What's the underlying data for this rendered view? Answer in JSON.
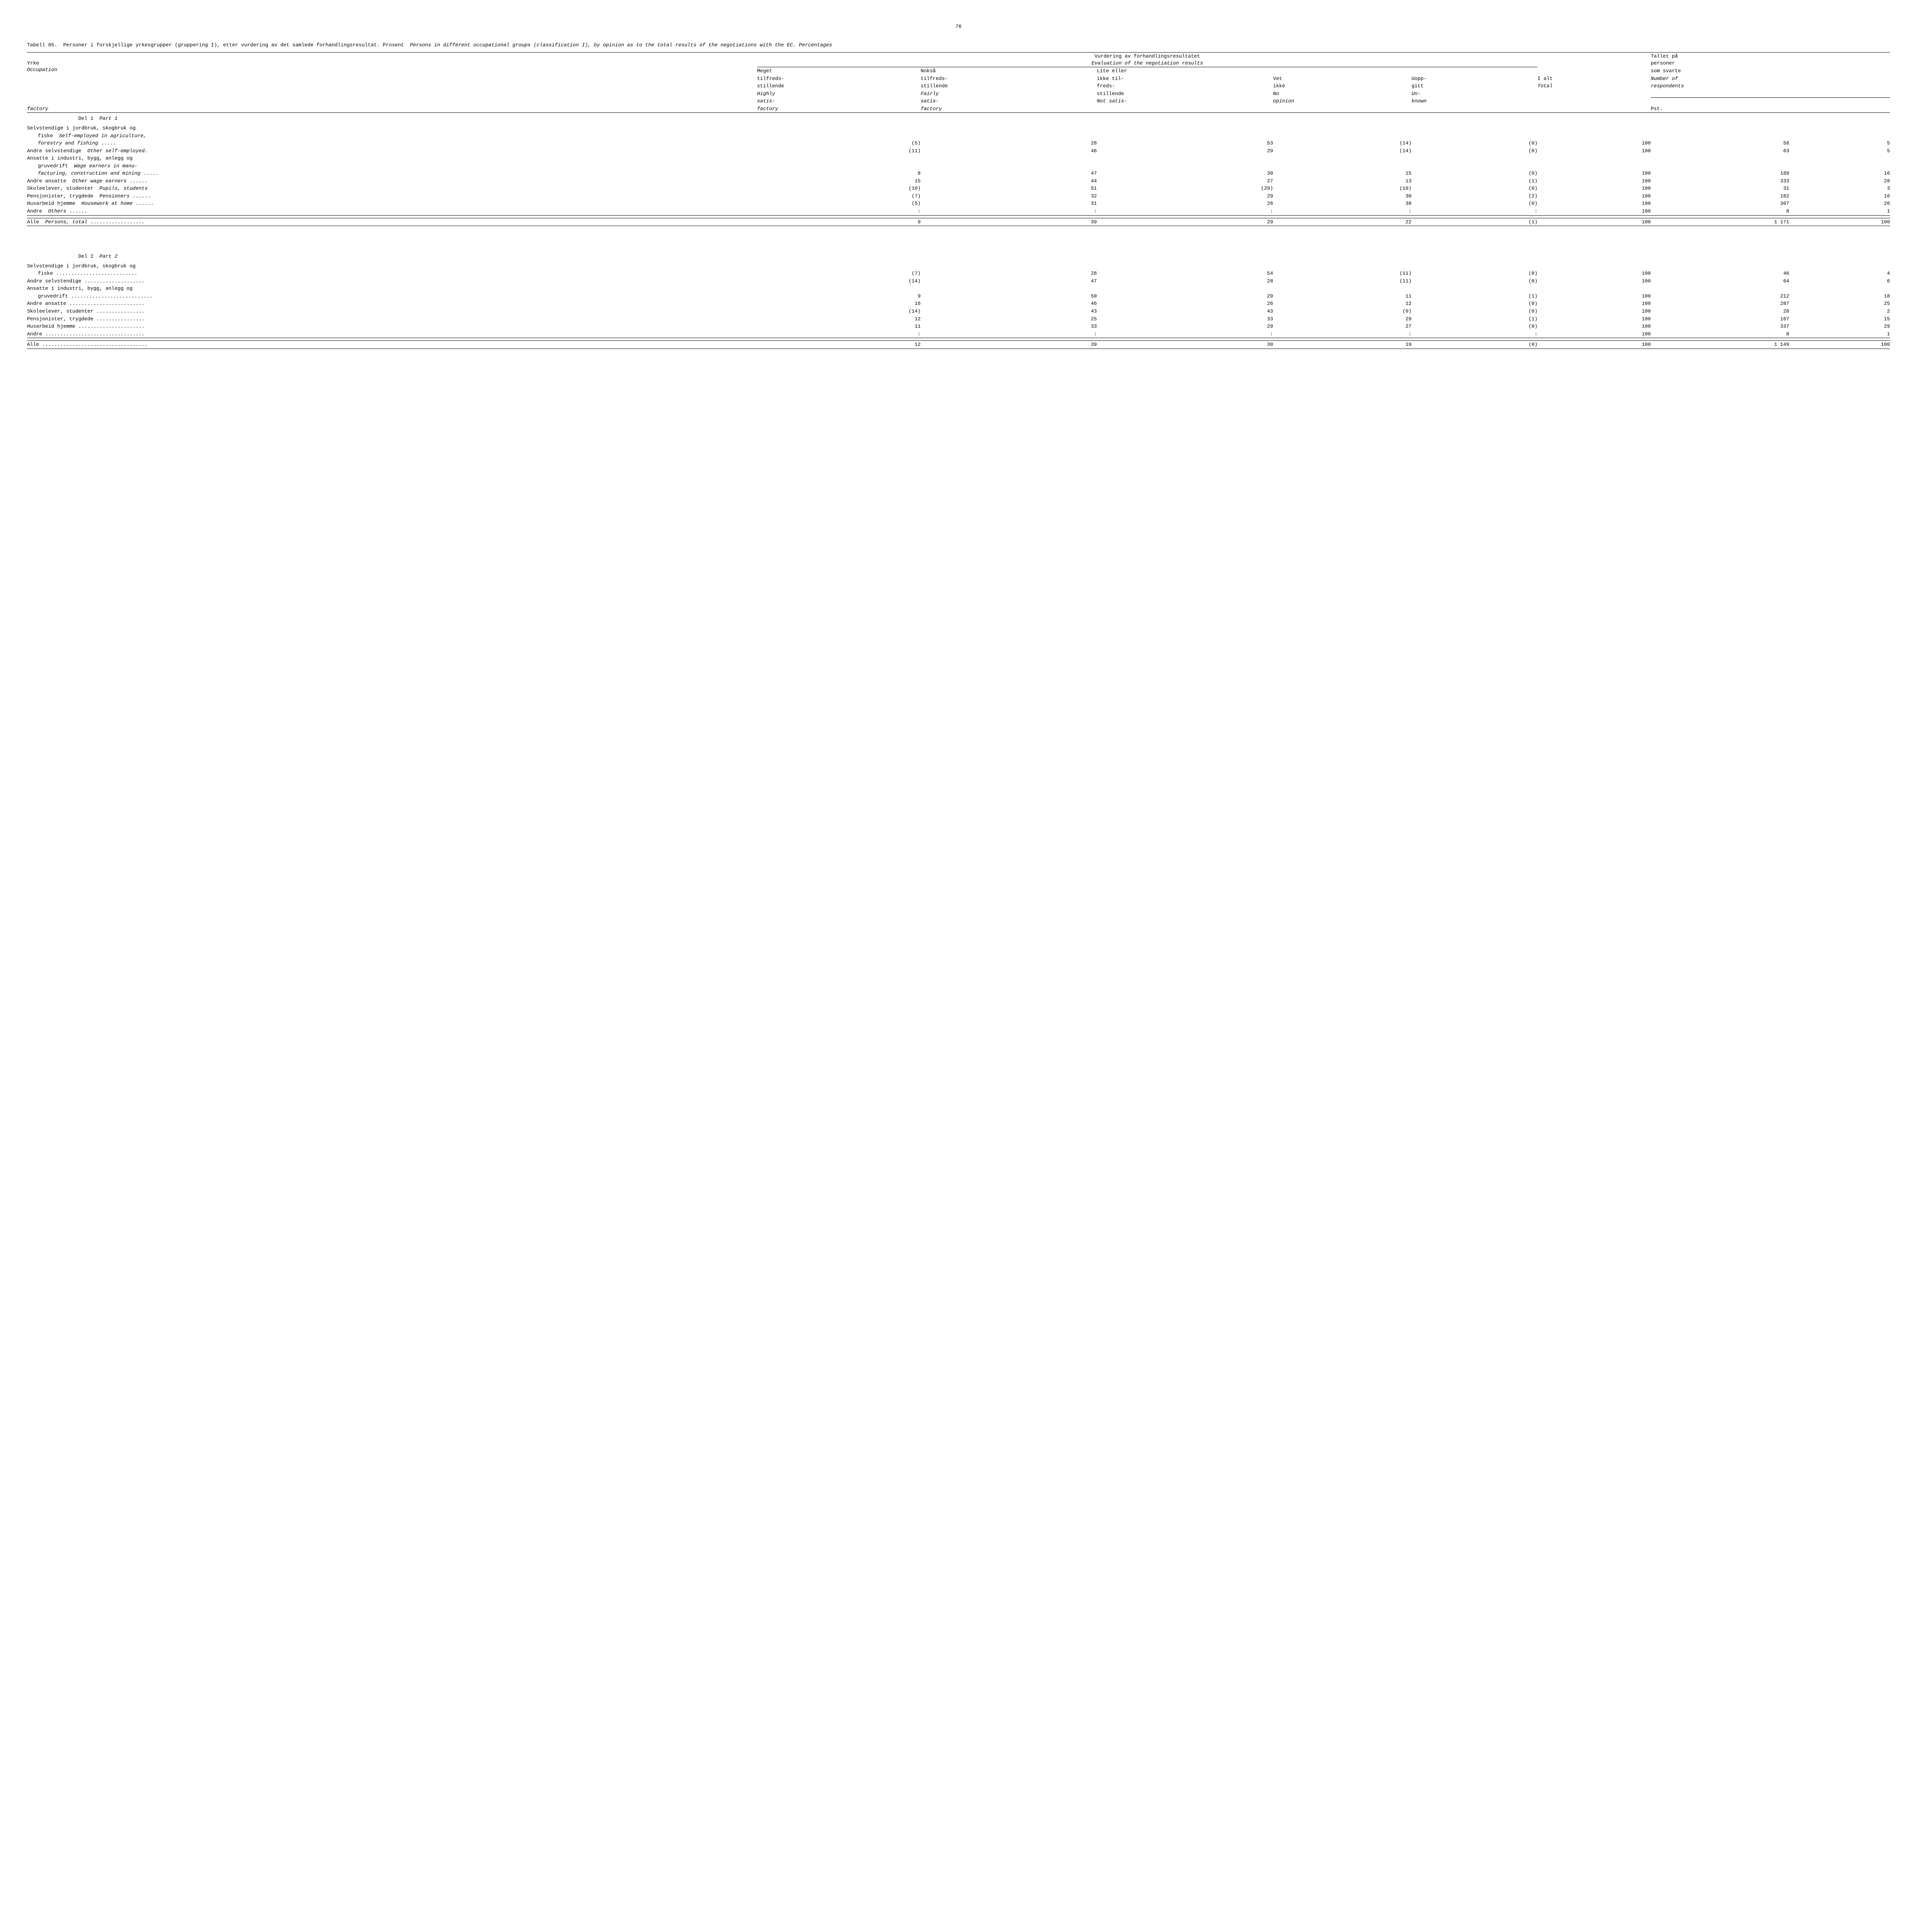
{
  "pageNumber": "76",
  "caption": {
    "tableNum": "Tabell 85.",
    "no": "Personer i forskjellige yrkesgrupper (gruppering I), etter vurdering av det samlede forhandlingsresultat.  Prosent",
    "en": "Persons in different occupational groups (classification I), by opinion as to the total results of the negotiations with the EC.  Percentages"
  },
  "header": {
    "yrke_no": "Yrke",
    "yrke_en": "Occupation",
    "eval_no": "Vurdering av forhandlingsresultatet",
    "eval_en": "Evaluation of the negotiation results",
    "col1": {
      "no1": "Meget",
      "no2": "tilfreds-",
      "no3": "stillende",
      "en1": "Highly",
      "en2": "satis-",
      "en3": "factory"
    },
    "col2": {
      "no1": "Nokså",
      "no2": "tilfreds-",
      "no3": "stillende",
      "en1": "Fairly",
      "en2": "satis-",
      "en3": "factory"
    },
    "col3": {
      "no1": "Lite eller",
      "no2": "ikke til-",
      "no3": "freds-",
      "no4": "stillende",
      "en1": "Not satis-",
      "en2": "factory"
    },
    "col4": {
      "no1": "Vet",
      "no2": "ikke",
      "en1": "No",
      "en2": "opinion"
    },
    "col5": {
      "no1": "Uopp-",
      "no2": "gitt",
      "en1": "Un-",
      "en2": "known"
    },
    "col6": {
      "no": "I alt",
      "en": "Total"
    },
    "respondents_no1": "Tallet på",
    "respondents_no2": "personer",
    "respondents_no3": "som svarte",
    "respondents_en1": "Number of",
    "respondents_en2": "respondents",
    "pst": "Pst."
  },
  "part1": {
    "heading": {
      "no": "Del 1",
      "en": "Part 1"
    },
    "rows": [
      {
        "label_no": "Selvstendige i jordbruk, skogbruk og",
        "label_no2": "fiske",
        "label_en": "Self-employed in agriculture,",
        "label_en2": "forestry and fishing",
        "v": [
          "(5)",
          "28",
          "53",
          "(14)",
          "(0)",
          "100",
          "58",
          "5"
        ]
      },
      {
        "label_no": "Andre selvstendige",
        "label_en": "Other self-employed.",
        "v": [
          "(11)",
          "46",
          "29",
          "(14)",
          "(0)",
          "100",
          "63",
          "5"
        ]
      },
      {
        "label_no": "Ansatte i industri, bygg, anlegg og",
        "label_no2": "gruvedrift",
        "label_en": "Wage earners in manu-",
        "label_en2": "facturing, construction and mining",
        "v": [
          "8",
          "47",
          "30",
          "15",
          "(0)",
          "100",
          "189",
          "16"
        ]
      },
      {
        "label_no": "Andre ansatte",
        "label_en": "Other wage earners",
        "dots": true,
        "v": [
          "15",
          "44",
          "27",
          "13",
          "(1)",
          "100",
          "333",
          "28"
        ]
      },
      {
        "label_no": "Skoleelever, studenter",
        "label_en": "Pupils, students",
        "v": [
          "(10)",
          "51",
          "(29)",
          "(10)",
          "(0)",
          "100",
          "31",
          "3"
        ]
      },
      {
        "label_no": "Pensjonister, trygdede",
        "label_en": "Pensioners",
        "dots": true,
        "v": [
          "(7)",
          "32",
          "29",
          "30",
          "(2)",
          "100",
          "182",
          "16"
        ]
      },
      {
        "label_no": "Husarbeid hjemme",
        "label_en": "Housework at home",
        "dots": true,
        "v": [
          "(5)",
          "31",
          "26",
          "38",
          "(0)",
          "100",
          "307",
          "26"
        ]
      },
      {
        "label_no": "Andre",
        "label_en": "Others",
        "dots": true,
        "v": [
          ":",
          ":",
          ":",
          ":",
          ":",
          "100",
          "8",
          "1"
        ]
      }
    ],
    "total": {
      "label_no": "Alle",
      "label_en": "Persons, total",
      "dots": true,
      "v": [
        "9",
        "39",
        "29",
        "22",
        "(1)",
        "100",
        "1 171",
        "100"
      ]
    }
  },
  "part2": {
    "heading": {
      "no": "Del 2",
      "en": "Part 2"
    },
    "rows": [
      {
        "label": "Selvstendige i jordbruk, skogbruk og",
        "label2": "fiske",
        "dots": true,
        "v": [
          "(7)",
          "28",
          "54",
          "(11)",
          "(0)",
          "100",
          "46",
          "4"
        ]
      },
      {
        "label": "Andre selvstendige",
        "dots": true,
        "v": [
          "(14)",
          "47",
          "28",
          "(11)",
          "(0)",
          "100",
          "64",
          "6"
        ]
      },
      {
        "label": "Ansatte i industri, bygg, anlegg og",
        "label2": "gruvedrift",
        "dots": true,
        "v": [
          "9",
          "50",
          "29",
          "11",
          "(1)",
          "100",
          "212",
          "18"
        ]
      },
      {
        "label": "Andre ansatte",
        "dots": true,
        "v": [
          "16",
          "46",
          "26",
          "12",
          "(0)",
          "100",
          "287",
          "25"
        ]
      },
      {
        "label": "Skoleelever, studenter",
        "dots": true,
        "v": [
          "(14)",
          "43",
          "43",
          "(0)",
          "(0)",
          "100",
          "28",
          "2"
        ]
      },
      {
        "label": "Pensjonister, trygdede",
        "dots": true,
        "v": [
          "12",
          "25",
          "33",
          "29",
          "(1)",
          "100",
          "167",
          "15"
        ]
      },
      {
        "label": "Husarbeid hjemme",
        "dots": true,
        "v": [
          "11",
          "33",
          "29",
          "27",
          "(0)",
          "100",
          "337",
          "29"
        ]
      },
      {
        "label": "Andre",
        "dots": true,
        "v": [
          ":",
          ":",
          ":",
          ":",
          ":",
          "100",
          "8",
          "1"
        ]
      }
    ],
    "total": {
      "label": "Alle",
      "dots": true,
      "v": [
        "12",
        "39",
        "30",
        "19",
        "(0)",
        "100",
        "1 149",
        "100"
      ]
    }
  }
}
